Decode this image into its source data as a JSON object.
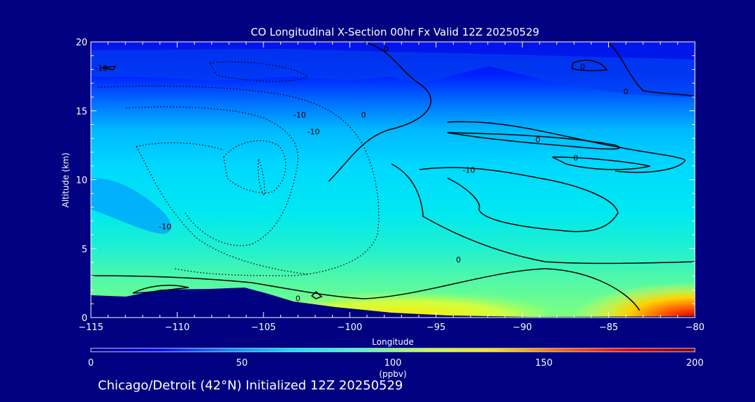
{
  "chart_data": {
    "type": "heatmap",
    "title": "CO Longitudinal X-Section 00hr  Fx Valid 12Z 20250529",
    "xlabel": "Longitude",
    "ylabel": "Altitude (km)",
    "xlim": [
      -115,
      -80
    ],
    "ylim": [
      0,
      20
    ],
    "x_ticks": [
      "-115",
      "-110",
      "-105",
      "-100",
      "-95",
      "-90",
      "-85",
      "-80"
    ],
    "y_ticks": [
      "0",
      "5",
      "10",
      "15",
      "20"
    ],
    "colorbar": {
      "range": [
        0,
        200
      ],
      "ticks": [
        "0",
        "50",
        "100",
        "150",
        "200"
      ],
      "units": "(ppbv)",
      "colors": [
        "#000090",
        "#0000ff",
        "#0080ff",
        "#00e0ff",
        "#40ffc0",
        "#c0ff40",
        "#ffe000",
        "#ff6000",
        "#e00000",
        "#800000"
      ]
    },
    "contour_labels": [
      {
        "text": "0",
        "lon": -97.9,
        "alt": 19.5
      },
      {
        "text": "0",
        "lon": -86.5,
        "alt": 18.2
      },
      {
        "text": "0",
        "lon": -84.0,
        "alt": 16.4
      },
      {
        "text": "0",
        "lon": -99.2,
        "alt": 14.7
      },
      {
        "text": "0",
        "lon": -89.1,
        "alt": 12.9
      },
      {
        "text": "0",
        "lon": -86.9,
        "alt": 11.6
      },
      {
        "text": "-10",
        "lon": -93.1,
        "alt": 10.7
      },
      {
        "text": "-10",
        "lon": -102.9,
        "alt": 14.7
      },
      {
        "text": "-10",
        "lon": -102.1,
        "alt": 13.5
      },
      {
        "text": "-10",
        "lon": -110.7,
        "alt": 6.6
      },
      {
        "text": "-10",
        "lon": -114.4,
        "alt": 18.1
      },
      {
        "text": "0",
        "lon": -93.7,
        "alt": 4.2
      },
      {
        "text": "0",
        "lon": -103.0,
        "alt": 1.4
      }
    ]
  },
  "footer": {
    "caption": "Chicago/Detroit (42°N) Initialized 12Z 20250529"
  }
}
